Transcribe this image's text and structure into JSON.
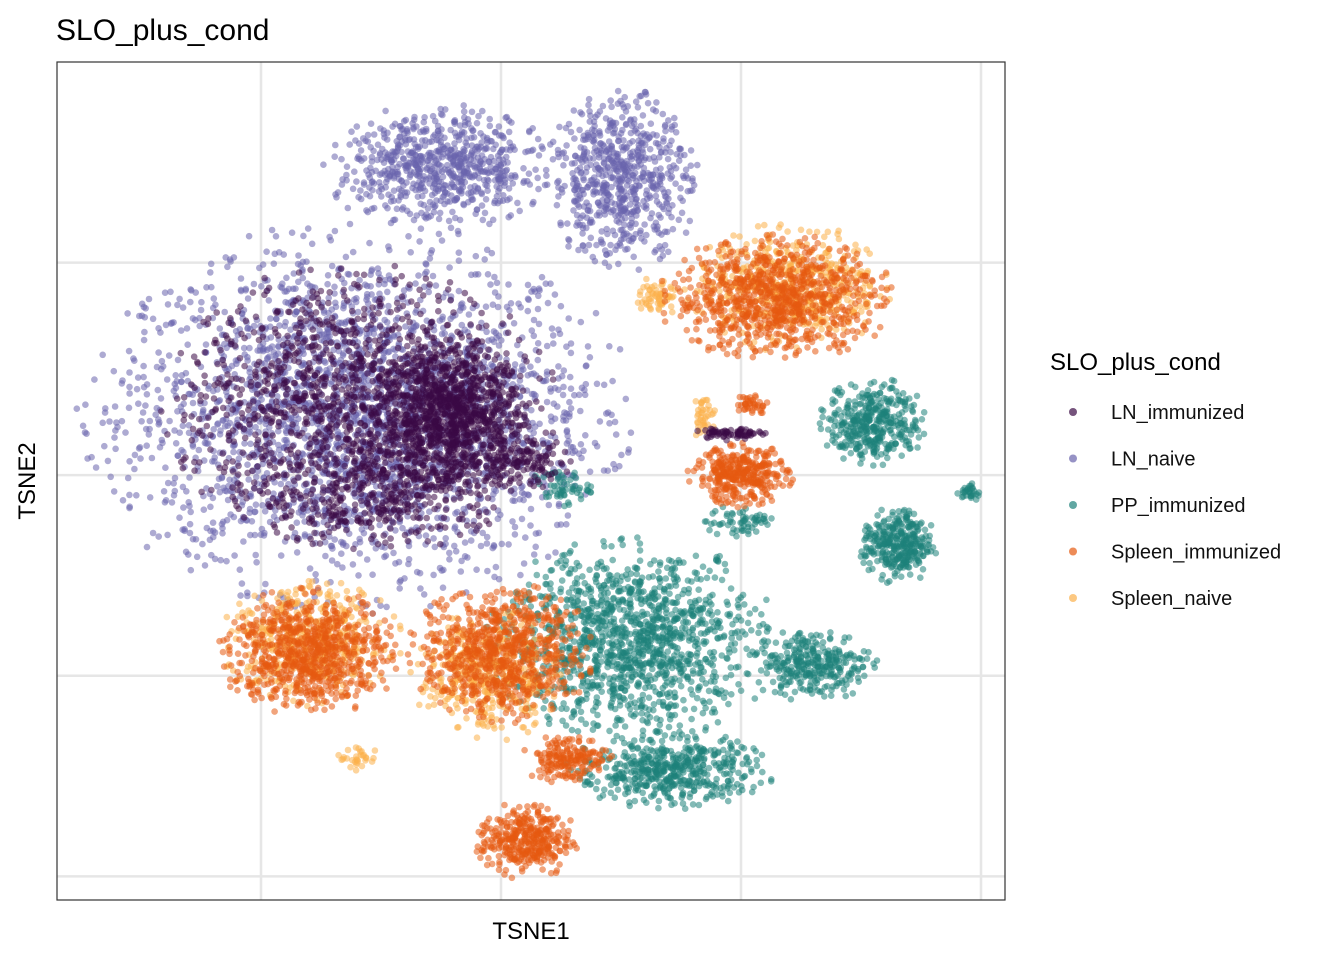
{
  "chart_data": {
    "type": "scatter",
    "title": "SLO_plus_cond",
    "xlabel": "TSNE1",
    "ylabel": "TSNE2",
    "xlim": [
      -42,
      37
    ],
    "ylim": [
      -39,
      32
    ],
    "grid": true,
    "legend_position": "right",
    "legend_title": "SLO_plus_cond",
    "point_opacity": 0.55,
    "series": [
      {
        "name": "LN_immunized",
        "color": "#3b0a45",
        "clusters": [
          {
            "cx": -17,
            "cy": 3,
            "rx": 15,
            "ry": 11,
            "n": 1300
          },
          {
            "cx": -9,
            "cy": 2,
            "rx": 6,
            "ry": 6,
            "n": 900
          },
          {
            "cx": -15,
            "cy": -5,
            "rx": 11,
            "ry": 4,
            "n": 300
          },
          {
            "cx": -3,
            "cy": -2,
            "rx": 4,
            "ry": 2,
            "n": 120
          },
          {
            "cx": 14,
            "cy": 0.5,
            "rx": 3,
            "ry": 0.5,
            "n": 70
          }
        ]
      },
      {
        "name": "LN_naive",
        "color": "#6a64ad",
        "clusters": [
          {
            "cx": -17,
            "cy": 2,
            "rx": 21,
            "ry": 15,
            "n": 2600
          },
          {
            "cx": -10,
            "cy": 23,
            "rx": 9,
            "ry": 5,
            "n": 700
          },
          {
            "cx": 5,
            "cy": 22,
            "rx": 6,
            "ry": 7,
            "n": 650
          }
        ]
      },
      {
        "name": "PP_immunized",
        "color": "#1e827a",
        "clusters": [
          {
            "cx": 6,
            "cy": -17,
            "rx": 11,
            "ry": 8,
            "n": 1300
          },
          {
            "cx": 9,
            "cy": -28,
            "rx": 8,
            "ry": 3,
            "n": 500
          },
          {
            "cx": 26,
            "cy": 1.5,
            "rx": 4,
            "ry": 3.5,
            "n": 380
          },
          {
            "cx": 28,
            "cy": -9,
            "rx": 3,
            "ry": 3,
            "n": 320
          },
          {
            "cx": 21,
            "cy": -19,
            "rx": 5,
            "ry": 3,
            "n": 300
          },
          {
            "cx": 34,
            "cy": -4.5,
            "rx": 1,
            "ry": 0.8,
            "n": 30
          },
          {
            "cx": 0,
            "cy": -4,
            "rx": 2.5,
            "ry": 1.5,
            "n": 60
          },
          {
            "cx": 15,
            "cy": -7,
            "rx": 3,
            "ry": 1.5,
            "n": 60
          }
        ]
      },
      {
        "name": "Spleen_immunized",
        "color": "#e65a10",
        "clusters": [
          {
            "cx": 18,
            "cy": 12,
            "rx": 9,
            "ry": 5,
            "n": 850
          },
          {
            "cx": 15,
            "cy": -3,
            "rx": 4,
            "ry": 2.5,
            "n": 360
          },
          {
            "cx": -21,
            "cy": -18,
            "rx": 7,
            "ry": 5,
            "n": 750
          },
          {
            "cx": -5,
            "cy": -18,
            "rx": 7,
            "ry": 5.5,
            "n": 750
          },
          {
            "cx": -3,
            "cy": -34,
            "rx": 4,
            "ry": 3,
            "n": 360
          },
          {
            "cx": 0.5,
            "cy": -27,
            "rx": 3.5,
            "ry": 2,
            "n": 180
          },
          {
            "cx": 16,
            "cy": 3,
            "rx": 1.3,
            "ry": 1,
            "n": 40
          }
        ]
      },
      {
        "name": "Spleen_naive",
        "color": "#fbb04b",
        "clusters": [
          {
            "cx": 19,
            "cy": 13,
            "rx": 8,
            "ry": 5,
            "n": 500
          },
          {
            "cx": 8,
            "cy": 12,
            "rx": 1.8,
            "ry": 1.8,
            "n": 60
          },
          {
            "cx": -21,
            "cy": -17,
            "rx": 7,
            "ry": 5,
            "n": 420
          },
          {
            "cx": -6,
            "cy": -20,
            "rx": 6,
            "ry": 5,
            "n": 400
          },
          {
            "cx": -17,
            "cy": -27,
            "rx": 2,
            "ry": 1,
            "n": 30
          },
          {
            "cx": 12,
            "cy": 2,
            "rx": 1,
            "ry": 2,
            "n": 40
          }
        ]
      }
    ]
  }
}
